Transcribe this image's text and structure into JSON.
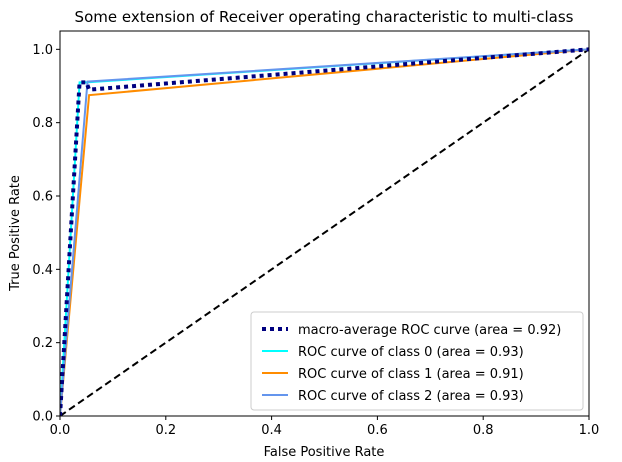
{
  "chart_data": {
    "type": "line",
    "title": "Some extension of Receiver operating characteristic to multi-class",
    "xlabel": "False Positive Rate",
    "ylabel": "True Positive Rate",
    "xlim": [
      0.0,
      1.0
    ],
    "ylim": [
      0.0,
      1.05
    ],
    "xticks": [
      0.0,
      0.2,
      0.4,
      0.6,
      0.8,
      1.0
    ],
    "yticks": [
      0.0,
      0.2,
      0.4,
      0.6,
      0.8,
      1.0
    ],
    "xtick_labels": [
      "0.0",
      "0.2",
      "0.4",
      "0.6",
      "0.8",
      "1.0"
    ],
    "ytick_labels": [
      "0.0",
      "0.2",
      "0.4",
      "0.6",
      "0.8",
      "1.0"
    ],
    "legend_position": "lower-right",
    "series": [
      {
        "name": "macro-average ROC curve (area = 0.92)",
        "color": "#000080",
        "style": "dotted",
        "x": [
          0.0,
          0.037,
          0.05,
          0.055,
          1.0
        ],
        "y": [
          0.0,
          0.91,
          0.91,
          0.89,
          1.0
        ]
      },
      {
        "name": "ROC curve of class 0 (area = 0.93)",
        "color": "#00ffff",
        "style": "solid",
        "x": [
          0.0,
          0.037,
          0.05,
          1.0
        ],
        "y": [
          0.0,
          0.91,
          0.91,
          1.0
        ]
      },
      {
        "name": "ROC curve of class 1 (area = 0.91)",
        "color": "#ff8c00",
        "style": "solid",
        "x": [
          0.0,
          0.055,
          1.0
        ],
        "y": [
          0.0,
          0.875,
          1.0
        ]
      },
      {
        "name": "ROC curve of class 2 (area = 0.93)",
        "color": "#6495ed",
        "style": "solid",
        "x": [
          0.0,
          0.052,
          1.0
        ],
        "y": [
          0.0,
          0.912,
          1.0
        ]
      }
    ],
    "reference_line": {
      "color": "#000000",
      "style": "dashed",
      "x": [
        0.0,
        1.0
      ],
      "y": [
        0.0,
        1.0
      ]
    }
  }
}
